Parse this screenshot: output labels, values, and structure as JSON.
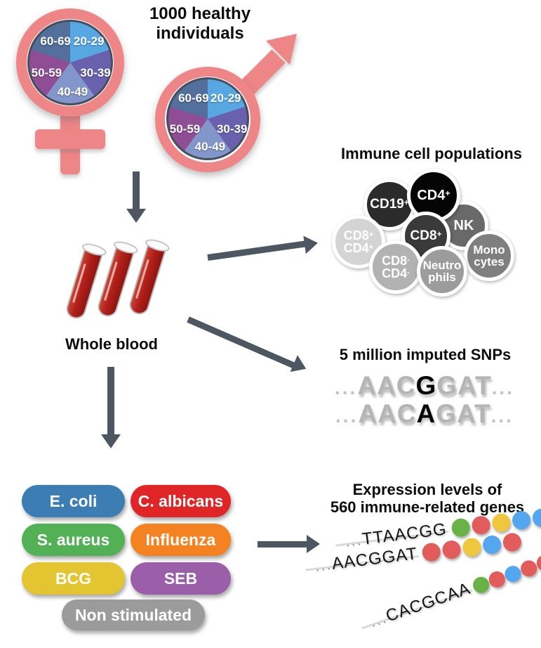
{
  "header": {
    "line1": "1000 healthy",
    "line2": "individuals"
  },
  "demographics": {
    "age_groups": [
      "20-29",
      "30-39",
      "40-49",
      "50-59",
      "60-69"
    ],
    "pie_colors": [
      "#57a7e3",
      "#6a61ae",
      "#8396cb",
      "#8e4d94",
      "#536f9b"
    ],
    "symbol_color": "#ee8586"
  },
  "whole_blood": {
    "label": "Whole blood"
  },
  "immune": {
    "title": "Immune cell populations",
    "cells": {
      "cd19": {
        "base": "CD19",
        "sup": "+",
        "color": "#2b2b2b"
      },
      "cd4": {
        "base": "CD4",
        "sup": "+",
        "color": "#050505"
      },
      "nk": {
        "base": "NK",
        "color": "#696969"
      },
      "cd8": {
        "base": "CD8",
        "sup": "+",
        "color": "#3a3a3a"
      },
      "cd8p_cd4p": {
        "line1": "CD8",
        "sup1": "+",
        "line2": "CD4",
        "sup2": "+",
        "color": "#d4d4d4"
      },
      "cd8n_cd4n": {
        "line1": "CD8",
        "sup1": "-",
        "line2": "CD4",
        "sup2": "-",
        "color": "#b2b2b2"
      },
      "neutrophils": {
        "line1": "Neutro",
        "line2": "phils",
        "color": "#9c9c9c"
      },
      "monocytes": {
        "line1": "Mono",
        "line2": "cytes",
        "color": "#7f7f7f"
      }
    }
  },
  "snps": {
    "title": "5 million imputed SNPs",
    "rows": [
      {
        "pre": "...",
        "left": "AAC",
        "snp": "G",
        "right": "GAT",
        "post": "..."
      },
      {
        "pre": "...",
        "left": "AAC",
        "snp": "A",
        "right": "GAT",
        "post": "..."
      }
    ]
  },
  "stimuli": {
    "items": [
      {
        "label": "E. coli",
        "color": "#3c7eb4"
      },
      {
        "label": "C. albicans",
        "color": "#e02526"
      },
      {
        "label": "S. aureus",
        "color": "#52b155"
      },
      {
        "label": "Influenza",
        "color": "#f58220"
      },
      {
        "label": "BCG",
        "color": "#e3c431"
      },
      {
        "label": "SEB",
        "color": "#9a5fa8"
      },
      {
        "label": "Non stimulated",
        "color": "#9b9b9b"
      }
    ]
  },
  "expression": {
    "title_line1": "Expression levels of",
    "title_line2": "560 immune-related genes",
    "strands": [
      {
        "pre": "...",
        "seq": "TTAACGG",
        "dots": [
          "green",
          "red",
          "yellow",
          "blue",
          "blue"
        ]
      },
      {
        "pre": "...",
        "seq": "AACGGAT",
        "dots": [
          "red",
          "red",
          "yellow",
          "blue",
          "red"
        ]
      },
      {
        "pre": "...",
        "seq": "CACGCAA",
        "dots": [
          "green",
          "red",
          "blue",
          "red",
          "red"
        ]
      }
    ],
    "dot_colors": {
      "green": "#68b247",
      "red": "#e25c5c",
      "yellow": "#eec73e",
      "blue": "#54a7ee"
    }
  },
  "palette": {
    "arrow": "#4d5761",
    "pie_outline": "#454f5b"
  }
}
